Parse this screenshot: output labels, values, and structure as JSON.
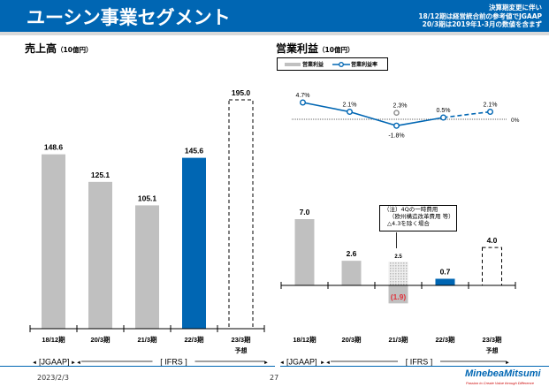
{
  "header": {
    "title": "ユーシン事業セグメント",
    "notes": [
      "決算期変更に伴い",
      "18/12期は経営統合前の参考値でJGAAP",
      "20/3期は2019年1-3月の数値を含まず"
    ]
  },
  "left_section": {
    "title": "売上高",
    "unit": "（10億円）"
  },
  "right_section": {
    "title": "営業利益",
    "unit": "（10億円）"
  },
  "legend": {
    "bar": "営業利益",
    "line": "営業利益率"
  },
  "note_box": [
    "（注）4Qの一時費用",
    "（欧州構造改革費用 等）",
    "△4.3を除く場合"
  ],
  "period_labels": {
    "jgaap": "[JGAAP]",
    "ifrs": "[ IFRS ]"
  },
  "forecast_label": "予想",
  "footer": {
    "date": "2023/2/3",
    "page": "27",
    "logo": "MinebeaMitsumi",
    "tagline": "Passion to Create Value through Difference"
  },
  "colors": {
    "brand": "#0066b3",
    "gray_bar": "#c0c0c0",
    "negative": "#e0303a"
  },
  "chart_data": [
    {
      "type": "bar",
      "title": "売上高（10億円）",
      "categories": [
        "18/12期",
        "20/3期",
        "21/3期",
        "22/3期",
        "23/3期"
      ],
      "values": [
        148.6,
        125.1,
        105.1,
        145.6,
        195.0
      ],
      "value_labels": [
        "148.6",
        "125.1",
        "105.1",
        "145.6",
        "195.0"
      ],
      "styles": [
        "gray",
        "gray",
        "gray",
        "blue",
        "dashed-forecast"
      ],
      "ylim": [
        0,
        210
      ]
    },
    {
      "type": "bar",
      "title": "営業利益（10億円）",
      "categories": [
        "18/12期",
        "20/3期",
        "21/3期",
        "22/3期",
        "23/3期"
      ],
      "values": [
        7.0,
        2.6,
        -1.9,
        0.7,
        4.0
      ],
      "value_labels": [
        "7.0",
        "2.6",
        "(1.9)",
        "0.7",
        "4.0"
      ],
      "adjusted": {
        "category": "21/3期",
        "value": 2.5,
        "label": "2.5"
      },
      "styles": [
        "gray",
        "gray",
        "gray",
        "blue",
        "dashed-forecast"
      ],
      "ylim": [
        -3,
        8
      ]
    },
    {
      "type": "line",
      "title": "営業利益率",
      "categories": [
        "18/12期",
        "20/3期",
        "21/3期",
        "22/3期",
        "23/3期"
      ],
      "values": [
        4.7,
        2.1,
        -1.8,
        0.5,
        2.1
      ],
      "value_labels": [
        "4.7%",
        "2.1%",
        "-1.8%",
        "0.5%",
        "2.1%"
      ],
      "adjusted": {
        "category": "21/3期",
        "value": 2.3,
        "label": "2.3%"
      },
      "zero_label": "0%",
      "ylim": [
        -3,
        6
      ]
    }
  ]
}
